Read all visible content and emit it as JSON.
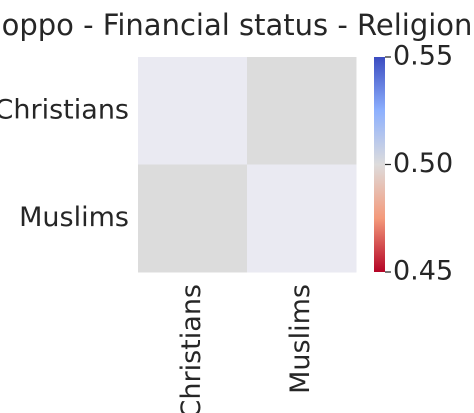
{
  "chart_data": {
    "type": "heatmap",
    "title": "oppo - Financial status - Religion",
    "rows": [
      "Christians",
      "Muslims"
    ],
    "columns": [
      "Christians",
      "Muslims"
    ],
    "values": [
      [
        null,
        0.5
      ],
      [
        0.5,
        null
      ]
    ],
    "cell_colors": [
      [
        "#eaeaf2",
        "#dcdcdc"
      ],
      [
        "#dcdcdc",
        "#eaeaf2"
      ]
    ],
    "colorbar": {
      "colormap": "coolwarm_r",
      "min": 0.45,
      "max": 0.55,
      "ticks": [
        0.55,
        0.5,
        0.45
      ],
      "tick_labels": [
        "0.55",
        "0.50",
        "0.45"
      ]
    }
  }
}
